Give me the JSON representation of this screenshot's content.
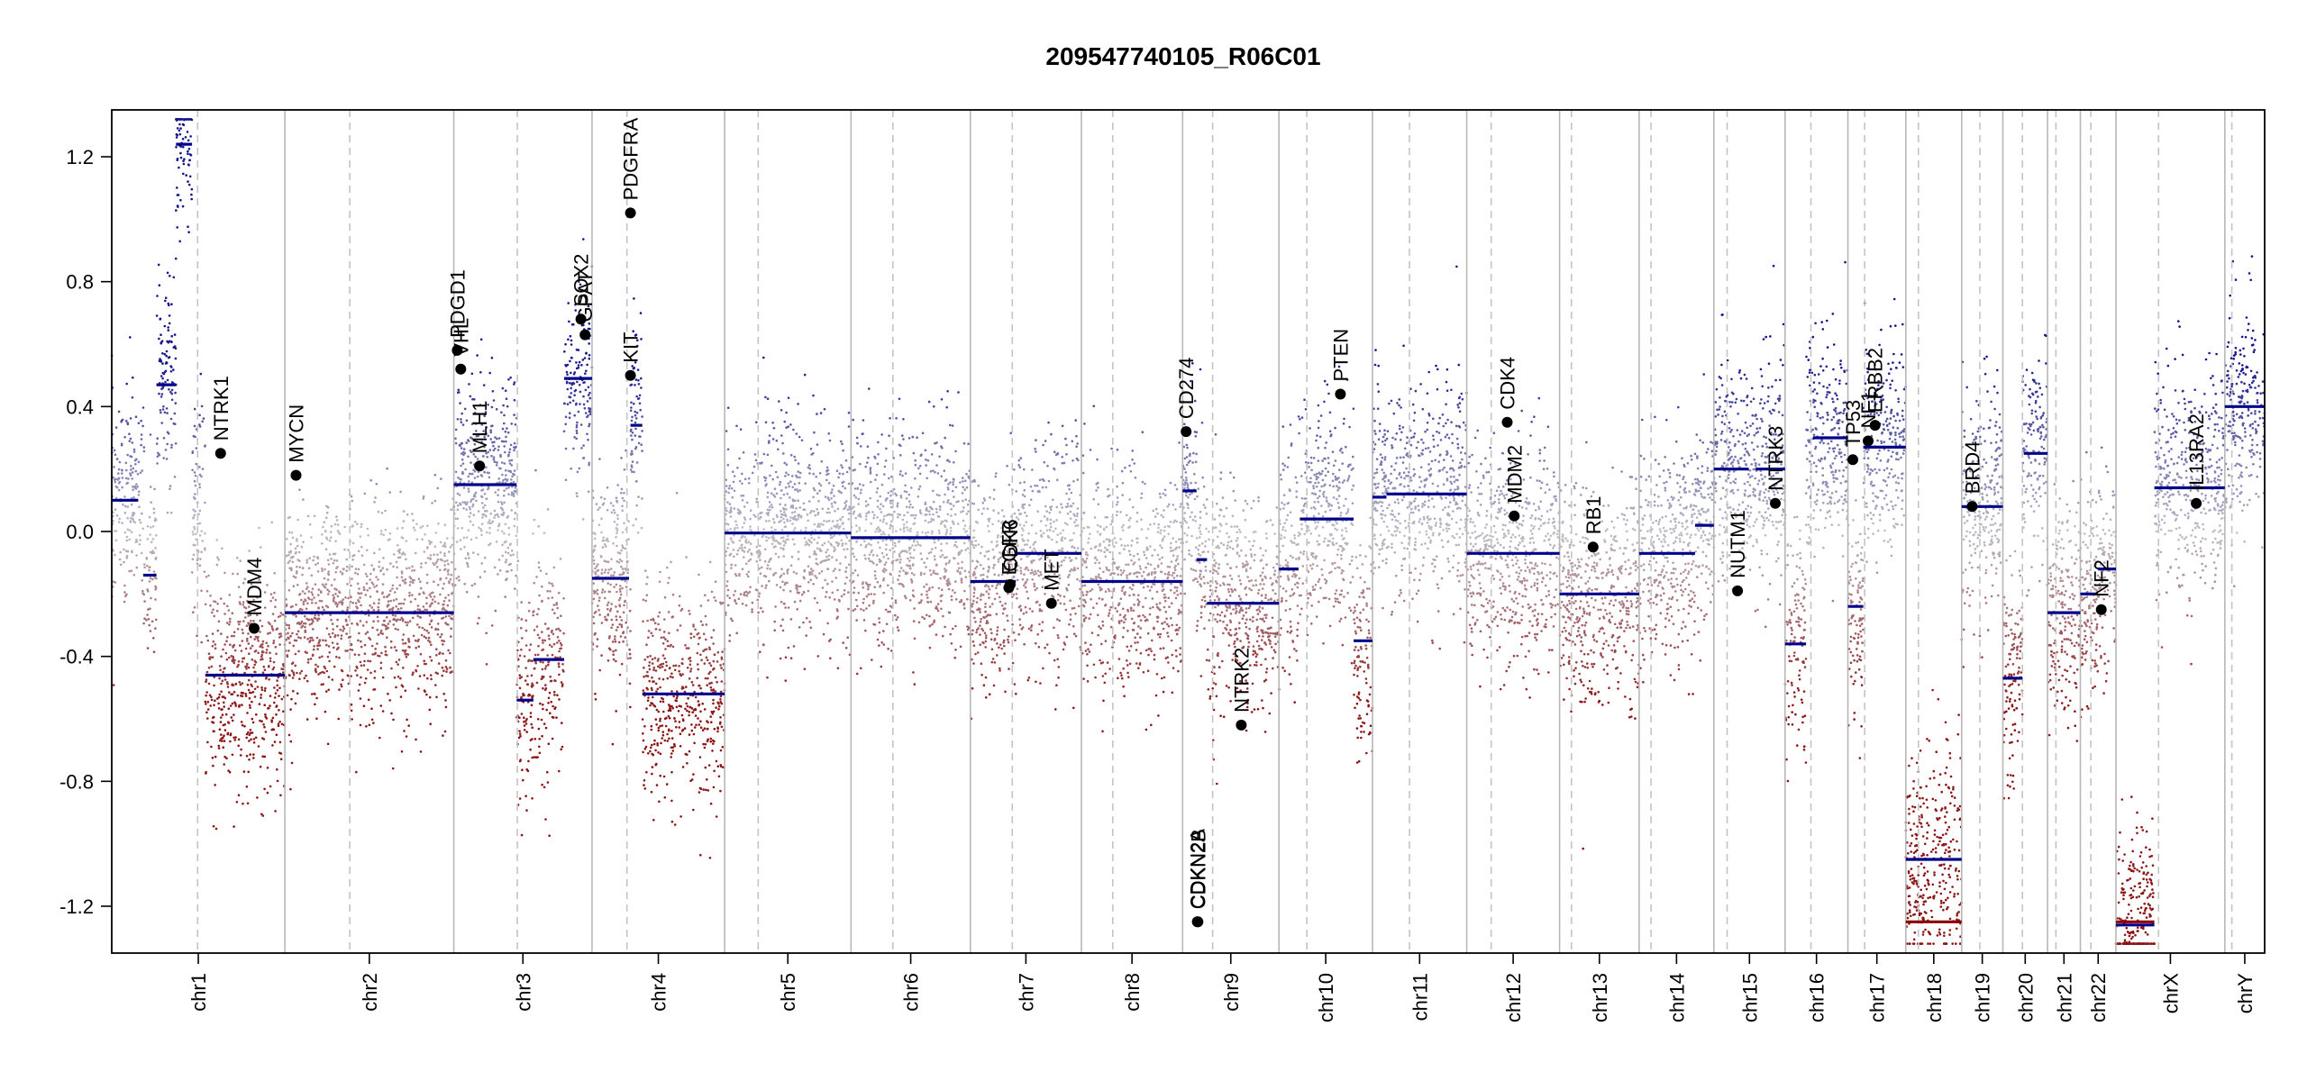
{
  "chart_data": {
    "type": "scatter",
    "title": "209547740105_R06C01",
    "ylim": [
      -1.35,
      1.35
    ],
    "yticks": [
      -1.2,
      -0.8,
      -0.4,
      0.0,
      0.4,
      0.8,
      1.2
    ],
    "ytick_labels": [
      "-1.2",
      "-0.8",
      "-0.4",
      "0.0",
      "0.4",
      "0.8",
      "1.2"
    ],
    "x_unit": "Mb (cumulative genome position)",
    "colors": {
      "gain": "#1a1a8c",
      "loss": "#8b1a1a",
      "neutral": "#b0b0b0",
      "segment": "#00008b",
      "segment_deep_loss": "#8b0000"
    },
    "chromosomes": [
      {
        "name": "chr1",
        "length": 248,
        "centromere": 123,
        "base": 0.08
      },
      {
        "name": "chr2",
        "length": 242,
        "centromere": 93,
        "base": -0.26
      },
      {
        "name": "chr3",
        "length": 198,
        "centromere": 91,
        "base": 0.15
      },
      {
        "name": "chr4",
        "length": 190,
        "centromere": 50,
        "base": -0.4
      },
      {
        "name": "chr5",
        "length": 181,
        "centromere": 48,
        "base": 0.0
      },
      {
        "name": "chr6",
        "length": 171,
        "centromere": 60,
        "base": -0.02
      },
      {
        "name": "chr7",
        "length": 159,
        "centromere": 60,
        "base": -0.1
      },
      {
        "name": "chr8",
        "length": 145,
        "centromere": 45,
        "base": -0.16
      },
      {
        "name": "chr9",
        "length": 138,
        "centromere": 43,
        "base": -0.18
      },
      {
        "name": "chr10",
        "length": 134,
        "centromere": 40,
        "base": 0.04
      },
      {
        "name": "chr11",
        "length": 135,
        "centromere": 53,
        "base": 0.12
      },
      {
        "name": "chr12",
        "length": 133,
        "centromere": 35,
        "base": -0.07
      },
      {
        "name": "chr13",
        "length": 114,
        "centromere": 17,
        "base": -0.2
      },
      {
        "name": "chr14",
        "length": 107,
        "centromere": 17,
        "base": -0.07
      },
      {
        "name": "chr15",
        "length": 102,
        "centromere": 19,
        "base": 0.2
      },
      {
        "name": "chr16",
        "length": 90,
        "centromere": 37,
        "base": 0.3
      },
      {
        "name": "chr17",
        "length": 83,
        "centromere": 24,
        "base": 0.27
      },
      {
        "name": "chr18",
        "length": 80,
        "centromere": 18,
        "base": -1.05
      },
      {
        "name": "chr19",
        "length": 59,
        "centromere": 26,
        "base": 0.08
      },
      {
        "name": "chr20",
        "length": 64,
        "centromere": 28,
        "base": 0.25
      },
      {
        "name": "chr21",
        "length": 47,
        "centromere": 12,
        "base": -0.26
      },
      {
        "name": "chr22",
        "length": 51,
        "centromere": 15,
        "base": -0.2
      },
      {
        "name": "chrX",
        "length": 156,
        "centromere": 61,
        "base": 0.14
      },
      {
        "name": "chrY",
        "length": 57,
        "centromere": 10,
        "base": 0.4
      }
    ],
    "segments": [
      {
        "chr": "chr1",
        "start": 0,
        "end": 38,
        "value": 0.1
      },
      {
        "chr": "chr1",
        "start": 45,
        "end": 64,
        "value": -0.14
      },
      {
        "chr": "chr1",
        "start": 64,
        "end": 92,
        "value": 0.47
      },
      {
        "chr": "chr1",
        "start": 92,
        "end": 115,
        "value": 1.24
      },
      {
        "chr": "chr1",
        "start": 134,
        "end": 248,
        "value": -0.46
      },
      {
        "chr": "chr2",
        "start": 0,
        "end": 242,
        "value": -0.26
      },
      {
        "chr": "chr3",
        "start": 0,
        "end": 90,
        "value": 0.15
      },
      {
        "chr": "chr3",
        "start": 90,
        "end": 114,
        "value": -0.54
      },
      {
        "chr": "chr3",
        "start": 114,
        "end": 158,
        "value": -0.41
      },
      {
        "chr": "chr3",
        "start": 158,
        "end": 198,
        "value": 0.49
      },
      {
        "chr": "chr4",
        "start": 0,
        "end": 53,
        "value": -0.15
      },
      {
        "chr": "chr4",
        "start": 55,
        "end": 72,
        "value": 0.34
      },
      {
        "chr": "chr4",
        "start": 72,
        "end": 190,
        "value": -0.52
      },
      {
        "chr": "chr5",
        "start": 0,
        "end": 181,
        "value": -0.005
      },
      {
        "chr": "chr6",
        "start": 0,
        "end": 171,
        "value": -0.02
      },
      {
        "chr": "chr7",
        "start": 0,
        "end": 65,
        "value": -0.16
      },
      {
        "chr": "chr7",
        "start": 65,
        "end": 159,
        "value": -0.07
      },
      {
        "chr": "chr8",
        "start": 0,
        "end": 145,
        "value": -0.16
      },
      {
        "chr": "chr9",
        "start": 0,
        "end": 20,
        "value": 0.13
      },
      {
        "chr": "chr9",
        "start": 20,
        "end": 35,
        "value": -0.09
      },
      {
        "chr": "chr9",
        "start": 35,
        "end": 138,
        "value": -0.23
      },
      {
        "chr": "chr10",
        "start": 0,
        "end": 28,
        "value": -0.12
      },
      {
        "chr": "chr10",
        "start": 30,
        "end": 107,
        "value": 0.04
      },
      {
        "chr": "chr10",
        "start": 107,
        "end": 134,
        "value": -0.35
      },
      {
        "chr": "chr11",
        "start": 0,
        "end": 20,
        "value": 0.11
      },
      {
        "chr": "chr11",
        "start": 20,
        "end": 135,
        "value": 0.12
      },
      {
        "chr": "chr12",
        "start": 0,
        "end": 133,
        "value": -0.07
      },
      {
        "chr": "chr13",
        "start": 0,
        "end": 114,
        "value": -0.2
      },
      {
        "chr": "chr14",
        "start": 0,
        "end": 80,
        "value": -0.07
      },
      {
        "chr": "chr14",
        "start": 80,
        "end": 107,
        "value": 0.02
      },
      {
        "chr": "chr15",
        "start": 0,
        "end": 50,
        "value": 0.2
      },
      {
        "chr": "chr15",
        "start": 60,
        "end": 102,
        "value": 0.2
      },
      {
        "chr": "chr16",
        "start": 0,
        "end": 30,
        "value": -0.36
      },
      {
        "chr": "chr16",
        "start": 40,
        "end": 90,
        "value": 0.3
      },
      {
        "chr": "chr17",
        "start": 0,
        "end": 22,
        "value": -0.24
      },
      {
        "chr": "chr17",
        "start": 22,
        "end": 83,
        "value": 0.27
      },
      {
        "chr": "chr18",
        "start": 0,
        "end": 80,
        "value": -1.05
      },
      {
        "chr": "chr18",
        "start": 0,
        "end": 80,
        "value": -1.25,
        "deep": true
      },
      {
        "chr": "chr19",
        "start": 0,
        "end": 59,
        "value": 0.08
      },
      {
        "chr": "chr20",
        "start": 0,
        "end": 28,
        "value": -0.47
      },
      {
        "chr": "chr20",
        "start": 30,
        "end": 64,
        "value": 0.25
      },
      {
        "chr": "chr21",
        "start": 0,
        "end": 47,
        "value": -0.26
      },
      {
        "chr": "chr22",
        "start": 0,
        "end": 25,
        "value": -0.2
      },
      {
        "chr": "chr22",
        "start": 25,
        "end": 51,
        "value": -0.12
      },
      {
        "chr": "chrX",
        "start": 0,
        "end": 55,
        "value": -1.25,
        "deep": true
      },
      {
        "chr": "chrX",
        "start": 0,
        "end": 55,
        "value": -1.26
      },
      {
        "chr": "chrX",
        "start": 55,
        "end": 156,
        "value": 0.14
      },
      {
        "chr": "chrY",
        "start": 0,
        "end": 57,
        "value": 0.4
      }
    ],
    "genes": [
      {
        "label": "NTRK1",
        "chr": "chr1",
        "pos": 156,
        "value": 0.25
      },
      {
        "label": "MDM4",
        "chr": "chr1",
        "pos": 204,
        "value": -0.31
      },
      {
        "label": "MYCN",
        "chr": "chr2",
        "pos": 16,
        "value": 0.18
      },
      {
        "label": "PDGFRA",
        "chr": "chr4",
        "pos": 55,
        "value": 1.02
      },
      {
        "label": "KIT",
        "chr": "chr4",
        "pos": 55,
        "value": 0.5
      },
      {
        "label": "VHL",
        "chr": "chr3",
        "pos": 10,
        "value": 0.52
      },
      {
        "label": "PDGD1",
        "chr": "chr3",
        "pos": 5,
        "value": 0.58
      },
      {
        "label": "MLH1",
        "chr": "chr3",
        "pos": 37,
        "value": 0.21
      },
      {
        "label": "SOX2",
        "chr": "chr3",
        "pos": 182,
        "value": 0.68
      },
      {
        "label": "GPAT",
        "chr": "chr3",
        "pos": 188,
        "value": 0.63
      },
      {
        "label": "EGFR",
        "chr": "chr7",
        "pos": 55,
        "value": -0.18
      },
      {
        "label": "CDK6",
        "chr": "chr7",
        "pos": 57,
        "value": -0.17
      },
      {
        "label": "MET",
        "chr": "chr7",
        "pos": 116,
        "value": -0.23
      },
      {
        "label": "CD274",
        "chr": "chr9",
        "pos": 5,
        "value": 0.32
      },
      {
        "label": "CDKN2A",
        "chr": "chr9",
        "pos": 21,
        "value": -1.25
      },
      {
        "label": "CDKN2B",
        "chr": "chr9",
        "pos": 22,
        "value": -1.25
      },
      {
        "label": "NTRK2",
        "chr": "chr9",
        "pos": 84,
        "value": -0.62
      },
      {
        "label": "PTEN",
        "chr": "chr10",
        "pos": 88,
        "value": 0.44
      },
      {
        "label": "CDK4",
        "chr": "chr12",
        "pos": 58,
        "value": 0.35
      },
      {
        "label": "MDM2",
        "chr": "chr12",
        "pos": 68,
        "value": 0.05
      },
      {
        "label": "RB1",
        "chr": "chr13",
        "pos": 48,
        "value": -0.05
      },
      {
        "label": "NUTM1",
        "chr": "chr15",
        "pos": 34,
        "value": -0.19
      },
      {
        "label": "NTRK3",
        "chr": "chr15",
        "pos": 88,
        "value": 0.09
      },
      {
        "label": "TP53",
        "chr": "chr17",
        "pos": 7,
        "value": 0.23
      },
      {
        "label": "NF1",
        "chr": "chr17",
        "pos": 29,
        "value": 0.29
      },
      {
        "label": "ERBB2",
        "chr": "chr17",
        "pos": 39,
        "value": 0.34
      },
      {
        "label": "BRD4",
        "chr": "chr19",
        "pos": 15,
        "value": 0.08
      },
      {
        "label": "NF2",
        "chr": "chr22",
        "pos": 30,
        "value": -0.25
      },
      {
        "label": "IL13RA2",
        "chr": "chrX",
        "pos": 115,
        "value": 0.09
      }
    ]
  }
}
